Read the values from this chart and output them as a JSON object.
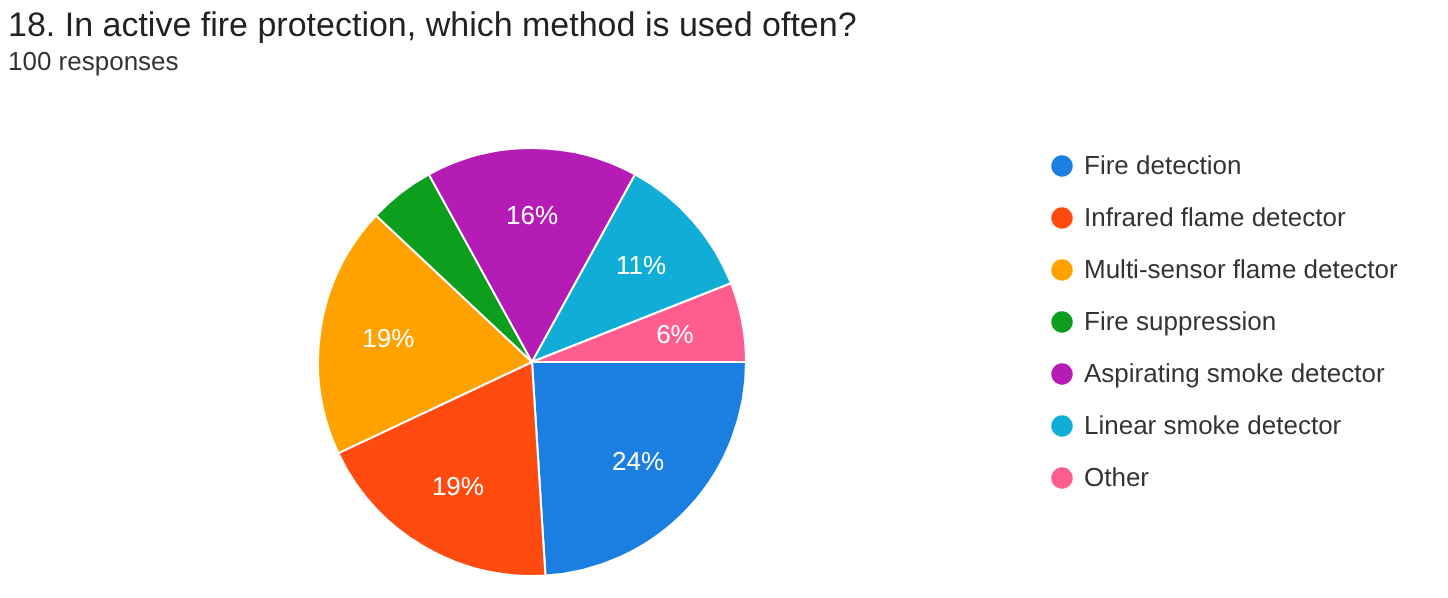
{
  "chart_data": {
    "type": "pie",
    "title": "18. In active fire protection, which method is used often?",
    "subtitle": "100 responses",
    "categories": [
      "Fire detection",
      "Infrared flame detector",
      "Multi-sensor flame detector",
      "Fire suppression",
      "Aspirating smoke detector",
      "Linear smoke detector",
      "Other"
    ],
    "values": [
      24,
      19,
      19,
      5,
      16,
      11,
      6
    ],
    "value_labels": [
      "24%",
      "19%",
      "19%",
      null,
      "16%",
      "11%",
      "6%"
    ],
    "colors": [
      "#1a7fe0",
      "#ff4a10",
      "#ffa200",
      "#0e9e1e",
      "#b51cb5",
      "#10aed6",
      "#ff5c8f"
    ],
    "legend": "right"
  }
}
